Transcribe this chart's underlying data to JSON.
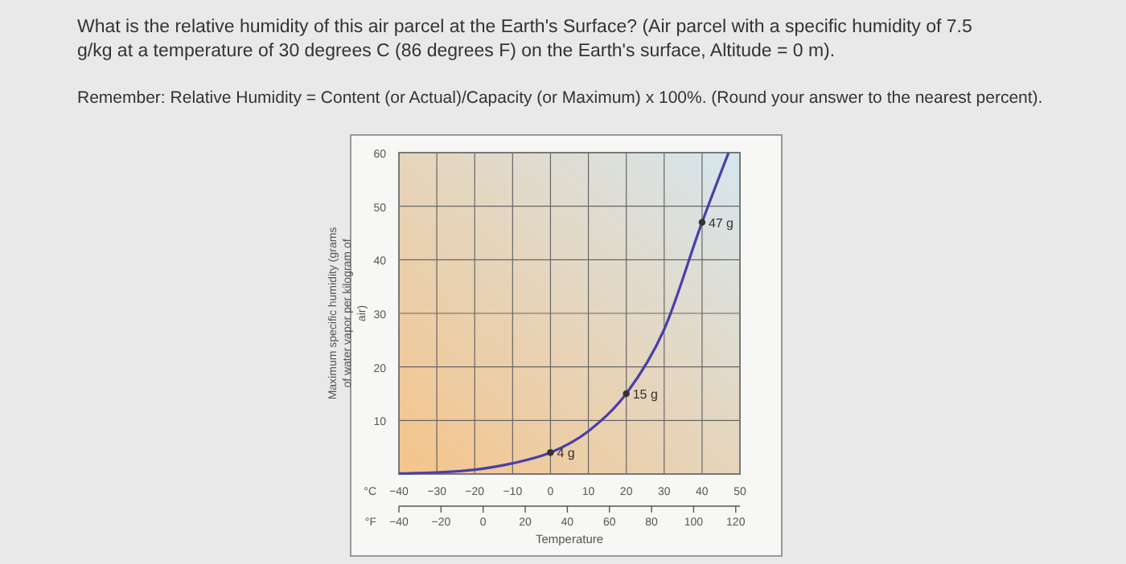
{
  "chart_data": {
    "type": "line",
    "title": "What is the relative humidity of this air parcel at the Earth's Surface? (Air parcel with a specific humidity of 7.5 g/kg at a temperature of 30 degrees C (86 degrees F) on the Earth's surface, Altitude = 0 m).",
    "subtitle": "Remember: Relative Humidity = Content (or Actual)/Capacity (or Maximum) x 100%. (Round your answer to the nearest percent).",
    "xlabel": "Temperature",
    "ylabel": "Maximum specific humidity (grams of water vapor per kilogram of air)",
    "x": [
      -40,
      -30,
      -20,
      -10,
      0,
      10,
      20,
      30,
      40,
      47
    ],
    "series": [
      {
        "color": "#4a3fa8",
        "marker": "none",
        "values": [
          0.1,
          0.3,
          0.8,
          2,
          4,
          8,
          15,
          27,
          47,
          60
        ]
      },
      {
        "type": "scatter",
        "color": "#333333",
        "x": [
          0,
          20,
          40
        ],
        "values": [
          4,
          15,
          47
        ]
      }
    ],
    "xlim": [
      -40,
      50
    ],
    "xticks": [
      {
        "value": -40,
        "label": "−40"
      },
      {
        "value": -30,
        "label": "−30"
      },
      {
        "value": -20,
        "label": "−20"
      },
      {
        "value": -10,
        "label": "−10"
      },
      0,
      10,
      20,
      30,
      40,
      50
    ],
    "x2lim": [
      -40,
      122
    ],
    "x2ticks": [
      {
        "value": -40,
        "label": "−40"
      },
      {
        "value": -20,
        "label": "−20"
      },
      0,
      20,
      40,
      60,
      80,
      100,
      120
    ],
    "x2label": "°F",
    "ylim": [
      0,
      60
    ],
    "yticks": [
      10,
      20,
      30,
      40,
      50,
      60
    ],
    "grid": true,
    "marker": "circle",
    "line_style": "solid",
    "annotations": [
      "°C",
      {
        "text": "4 g",
        "x": 0,
        "y": 4
      },
      {
        "text": "15 g",
        "x": 20,
        "y": 15
      },
      {
        "text": "47 g",
        "x": 40,
        "y": 47
      }
    ]
  }
}
